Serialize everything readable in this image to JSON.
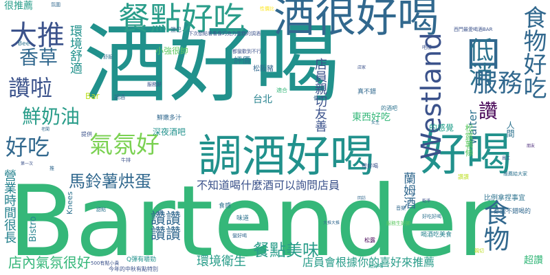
{
  "words": [
    {
      "text": "Bartender"
    },
    {
      "text": "酒好喝"
    },
    {
      "text": "酒很好喝"
    },
    {
      "text": "調酒好喝"
    },
    {
      "text": "好喝"
    },
    {
      "text": "餐點好吃"
    },
    {
      "text": "大推"
    },
    {
      "text": "口"
    },
    {
      "text": "Westland"
    },
    {
      "text": "服務"
    },
    {
      "text": "低消"
    },
    {
      "text": "食物好吃"
    },
    {
      "text": "讚啦"
    },
    {
      "text": "好吃"
    },
    {
      "text": "氣氛好"
    },
    {
      "text": "讚"
    },
    {
      "text": "食物"
    },
    {
      "text": "鮮奶油"
    },
    {
      "text": "香草"
    },
    {
      "text": "馬鈴薯烘蛋"
    },
    {
      "text": "餐點美味"
    },
    {
      "text": "讚讚"
    },
    {
      "text": "讚讚"
    },
    {
      "text": "店內氣氛很好"
    },
    {
      "text": "環境衛生"
    },
    {
      "text": "不知道喝什麼酒可以詢問店員"
    },
    {
      "text": "店員會根據你的喜好來推薦"
    },
    {
      "text": "店員親切友善"
    },
    {
      "text": "waiter"
    },
    {
      "text": "環境舒適"
    },
    {
      "text": "很推薦"
    },
    {
      "text": "松露薯條"
    },
    {
      "text": "營業時間很長"
    },
    {
      "text": "人間"
    },
    {
      "text": "東西好吃"
    },
    {
      "text": "超讚"
    },
    {
      "text": "蘭姆酒"
    },
    {
      "text": "Bistro"
    },
    {
      "text": "Knees"
    },
    {
      "text": "Bar"
    },
    {
      "text": "台北"
    },
    {
      "text": "評價"
    },
    {
      "text": "小強很帥"
    },
    {
      "text": "鮮嫩多汁"
    },
    {
      "text": "深夜酒吧"
    },
    {
      "text": "松阪豬"
    },
    {
      "text": "的感覺"
    },
    {
      "text": "比例拿捏事宜"
    },
    {
      "text": "都蠻不錯喝的"
    },
    {
      "text": "喝酒吃美食"
    },
    {
      "text": "Q彈有嚼勁"
    },
    {
      "text": "500有點小貴"
    },
    {
      "text": "今年的中秋有點特別"
    },
    {
      "text": "Bee"
    },
    {
      "text": "適合"
    },
    {
      "text": "提供"
    },
    {
      "text": "鹽巴"
    },
    {
      "text": "食感"
    },
    {
      "text": "味道"
    },
    {
      "text": "真不錯"
    },
    {
      "text": "下次想點看看像巧克力蛋糕的調酒"
    },
    {
      "text": "西門最愛喝酒BAR"
    },
    {
      "text": "吧檯"
    },
    {
      "text": "貴"
    },
    {
      "text": "都蠻歡到不行"
    },
    {
      "text": "的酒吧"
    },
    {
      "text": "超好喝"
    },
    {
      "text": "大推大推"
    },
    {
      "text": "服務生好帥"
    },
    {
      "text": "親切"
    },
    {
      "text": "性價比"
    },
    {
      "text": "調酒"
    },
    {
      "text": "很好喝"
    },
    {
      "text": "蠻好喝"
    },
    {
      "text": "好吃好喝"
    },
    {
      "text": "松露"
    },
    {
      "text": "推薦給大家"
    },
    {
      "text": "牛排"
    },
    {
      "text": "氛圍"
    },
    {
      "text": "甜點"
    },
    {
      "text": "音樂"
    },
    {
      "text": "乾淨"
    },
    {
      "text": "舒服"
    },
    {
      "text": "回訪"
    },
    {
      "text": "價格"
    },
    {
      "text": "店家"
    },
    {
      "text": "員工"
    },
    {
      "text": "女生"
    },
    {
      "text": "老闆"
    },
    {
      "text": "朋友"
    },
    {
      "text": "第一次"
    },
    {
      "text": "推"
    },
    {
      "text": "讚讚"
    },
    {
      "text": "服務好"
    }
  ]
}
